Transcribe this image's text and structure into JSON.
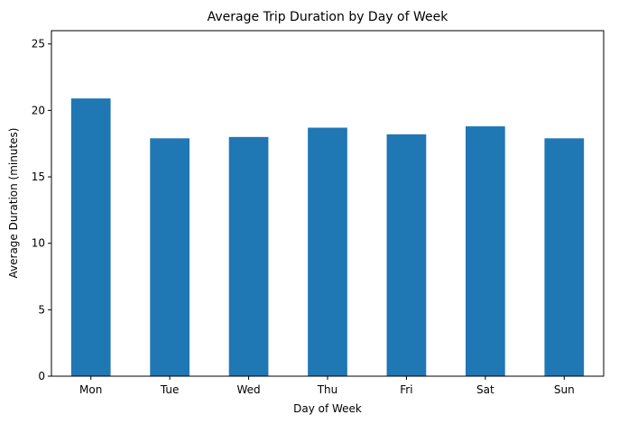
{
  "chart_data": {
    "type": "bar",
    "title": "Average Trip Duration by Day of Week",
    "xlabel": "Day of Week",
    "ylabel": "Average Duration (minutes)",
    "categories": [
      "Mon",
      "Tue",
      "Wed",
      "Thu",
      "Fri",
      "Sat",
      "Sun"
    ],
    "values": [
      20.9,
      17.9,
      18.0,
      18.7,
      18.2,
      18.8,
      17.9
    ],
    "ylim": [
      0,
      26
    ],
    "yticks": [
      "0",
      "5",
      "10",
      "15",
      "20",
      "25"
    ],
    "grid": false,
    "legend": "none",
    "bar_color": "#1f77b4"
  }
}
